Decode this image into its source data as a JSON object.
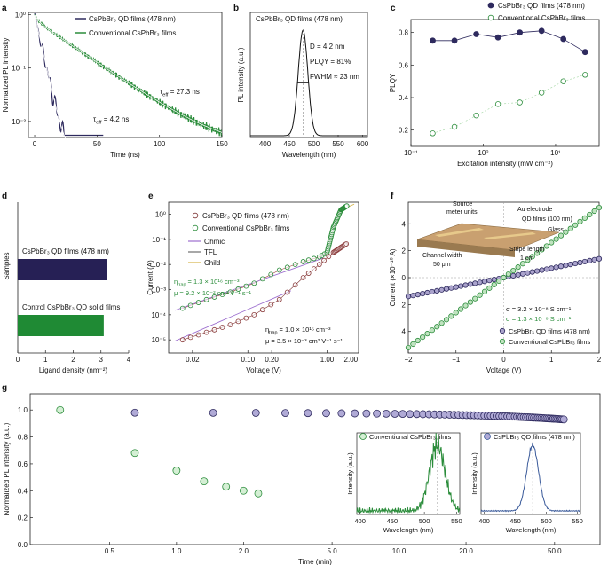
{
  "figure": {
    "panel_letters": [
      "a",
      "b",
      "c",
      "d",
      "e",
      "f",
      "g"
    ]
  },
  "colors": {
    "qd": "#2e2a5e",
    "qd_fill": "#262055",
    "qd_light": "#aaa3cc",
    "conv": "#2a8c3a",
    "conv_fill": "#1f8a34",
    "conv_light": "#bfe3bf",
    "fit": "#ffffff",
    "ohmic": "#9d6fcf",
    "tfl": "#6f6f6f",
    "child": "#d4b44a",
    "grid": "#dddddd"
  },
  "chart_data": [
    {
      "panel": "a",
      "type": "line",
      "title": "",
      "xlabel": "Time (ns)",
      "ylabel": "Normalized PL intensity",
      "xlim": [
        -5,
        150
      ],
      "xticks": [
        0,
        50,
        100,
        150
      ],
      "yscale": "log",
      "ylim": [
        0.005,
        1.1
      ],
      "yticks": [
        {
          "v": 1,
          "label": "10⁰"
        },
        {
          "v": 0.1,
          "label": "10⁻¹"
        },
        {
          "v": 0.01,
          "label": "10⁻²"
        }
      ],
      "legend": [
        "CsPbBr₃ QD films (478 nm)",
        "Conventional CsPbBr₃ films"
      ],
      "series": [
        {
          "name": "CsPbBr₃ QD films (478 nm)",
          "tau_eff_ns": 4.2,
          "x_end": 55
        },
        {
          "name": "Conventional CsPbBr₃ films",
          "tau_eff_ns": 27.3,
          "x_end": 150
        }
      ],
      "annotations": [
        {
          "text": "τ",
          "sub": "eff",
          "rest": " = 27.3 ns"
        },
        {
          "text": "τ",
          "sub": "eff",
          "rest": " = 4.2 ns"
        }
      ]
    },
    {
      "panel": "b",
      "type": "line",
      "title": "CsPbBr₃ QD films (478 nm)",
      "xlabel": "Wavelength (nm)",
      "ylabel": "PL intensity (a.u.)",
      "xlim": [
        370,
        610
      ],
      "xticks": [
        400,
        450,
        500,
        550,
        600
      ],
      "peak_nm": 478,
      "fwhm_nm": 23,
      "annotations": [
        "D = 4.2 nm",
        "PLQY = 81%",
        "FWHM ≈ 23 nm"
      ]
    },
    {
      "panel": "c",
      "type": "scatter",
      "title": "",
      "xlabel": "Excitation intensity (mW cm⁻²)",
      "ylabel": "PLQY",
      "xscale": "log",
      "xlim": [
        0.1,
        40
      ],
      "ylim": [
        0.1,
        0.88
      ],
      "xticks": [
        {
          "v": 0.1,
          "label": "10⁻¹"
        },
        {
          "v": 1,
          "label": "10⁰"
        },
        {
          "v": 10,
          "label": "10¹"
        }
      ],
      "yticks": [
        0.2,
        0.4,
        0.6,
        0.8
      ],
      "series": [
        {
          "name": "CsPbBr₃ QD films (478 nm)",
          "x": [
            0.2,
            0.4,
            0.8,
            1.6,
            3.2,
            6.4,
            12.8,
            25.6
          ],
          "y": [
            0.75,
            0.75,
            0.79,
            0.77,
            0.8,
            0.81,
            0.76,
            0.68
          ]
        },
        {
          "name": "Conventional CsPbBr₃ films",
          "x": [
            0.2,
            0.4,
            0.8,
            1.6,
            3.2,
            6.4,
            12.8,
            25.6
          ],
          "y": [
            0.18,
            0.22,
            0.29,
            0.36,
            0.37,
            0.43,
            0.5,
            0.54
          ]
        }
      ]
    },
    {
      "panel": "d",
      "type": "bar",
      "title": "",
      "xlabel": "Ligand density (nm⁻²)",
      "ylabel": "Samples",
      "xlim": [
        0,
        4
      ],
      "xticks": [
        0,
        1,
        2,
        3,
        4
      ],
      "categories": [
        "CsPbBr₃ QD films (478 nm)",
        "Control CsPbBr₃ QD solid films"
      ],
      "values": [
        3.2,
        3.1
      ]
    },
    {
      "panel": "e",
      "type": "scatter",
      "title": "",
      "xlabel": "Voltage (V)",
      "ylabel": "Current (A)",
      "xscale": "log",
      "yscale": "log",
      "xlim": [
        0.01,
        2.5
      ],
      "ylim": [
        3e-06,
        3
      ],
      "xticks": [
        {
          "v": 0.02,
          "label": "0.02"
        },
        {
          "v": 0.1,
          "label": "0.10"
        },
        {
          "v": 0.2,
          "label": "0.20"
        },
        {
          "v": 1,
          "label": "1.00"
        },
        {
          "v": 2,
          "label": "2.00"
        }
      ],
      "yticks": [
        {
          "v": 1,
          "label": "10⁰"
        },
        {
          "v": 0.1,
          "label": "10⁻¹"
        },
        {
          "v": 0.01,
          "label": "10⁻²"
        },
        {
          "v": 0.001,
          "label": "10⁻³"
        },
        {
          "v": 0.0001,
          "label": "10⁻⁴"
        },
        {
          "v": 1e-05,
          "label": "10⁻⁵"
        }
      ],
      "legend": [
        "CsPbBr₃ QD films (478 nm)",
        "Conventional CsPbBr₃ films",
        "Ohmic",
        "TFL",
        "Child"
      ],
      "series": [
        {
          "name": "CsPbBr₃ QD films (478 nm)",
          "x": [
            0.015,
            0.03,
            0.06,
            0.12,
            0.25,
            0.5,
            0.8,
            1.2,
            1.8
          ],
          "y": [
            1e-05,
            2e-05,
            4e-05,
            0.0001,
            0.0004,
            0.003,
            0.01,
            0.03,
            0.07
          ]
        },
        {
          "name": "Conventional CsPbBr₃ films",
          "x": [
            0.015,
            0.03,
            0.06,
            0.12,
            0.25,
            0.5,
            0.8,
            1.0,
            1.2,
            1.5,
            1.8
          ],
          "y": [
            0.00018,
            0.0004,
            0.0008,
            0.0018,
            0.006,
            0.013,
            0.02,
            0.03,
            0.3,
            1.5,
            2.2
          ]
        }
      ],
      "annotations": [
        {
          "t": "η",
          "sub": "trap",
          "rest": " = 1.3 × 10¹⁶ cm⁻³"
        },
        {
          "t": "μ = 9.2 × 10⁻² cm² V⁻¹ s⁻¹"
        },
        {
          "t": "η",
          "sub": "trap",
          "rest": " = 1.0 × 10¹⁵ cm⁻³"
        },
        {
          "t": "μ = 3.5 × 10⁻³ cm² V⁻¹ s⁻¹"
        }
      ]
    },
    {
      "panel": "f",
      "type": "scatter",
      "title": "",
      "xlabel": "Voltage (V)",
      "ylabel": "Current (×10⁻¹⁰ A)",
      "xlim": [
        -2,
        2
      ],
      "ylim": [
        -5.6,
        5.6
      ],
      "xticks": [
        -2,
        -1,
        0,
        1,
        2
      ],
      "yticks": [
        {
          "v": 4,
          "label": "4"
        },
        {
          "v": 2,
          "label": "2"
        },
        {
          "v": 0,
          "label": "0"
        },
        {
          "v": -2,
          "label": "2"
        },
        {
          "v": -4,
          "label": "4"
        }
      ],
      "series": [
        {
          "name": "CsPbBr₃ QD films (478 nm)",
          "x_range": [
            -2,
            2
          ],
          "slope": 0.7
        },
        {
          "name": "Conventional CsPbBr₃ films",
          "x_range": [
            -2,
            2
          ],
          "slope": 2.6
        }
      ],
      "annotations": [
        "σ = 3.2 × 10⁻⁸ S cm⁻¹",
        "σ = 1.3 × 10⁻⁸ S cm⁻¹"
      ],
      "inset_labels": [
        "Source",
        "meter units",
        "Au electrode",
        "QD films (100 nm)",
        "Glass",
        "Stripe length",
        "1 cm",
        "Channel width",
        "50 μm"
      ]
    },
    {
      "panel": "g",
      "type": "scatter",
      "title": "",
      "xlabel": "Time (min)",
      "ylabel": "Normalized PL intensity (a.u.)",
      "xscale": "log",
      "xlim": [
        0.22,
        80
      ],
      "ylim": [
        0,
        1.12
      ],
      "xticks": [
        0.5,
        1.0,
        2.0,
        5.0,
        10.0,
        20.0,
        50.0
      ],
      "yticks": [
        0,
        0.2,
        0.4,
        0.6,
        0.8,
        1.0
      ],
      "series": [
        {
          "name": "CsPbBr₃ QD films (478 nm)",
          "x_start": 0.65,
          "x_end": 55,
          "y_start": 0.98,
          "y_end": 0.93,
          "n": 68
        },
        {
          "name": "Conventional CsPbBr₃ films",
          "x": [
            0.3,
            0.65,
            1.0,
            1.33,
            1.67,
            2.0,
            2.33
          ],
          "y": [
            1.0,
            0.68,
            0.55,
            0.47,
            0.43,
            0.4,
            0.38
          ]
        }
      ],
      "insets": [
        {
          "title": "Conventional CsPbBr₃ films",
          "xlabel": "Wavelength (nm)",
          "ylabel": "Intensity (a.u.)",
          "xticks": [
            400,
            450,
            500,
            550
          ],
          "xlim": [
            395,
            555
          ],
          "peak_nm": 520
        },
        {
          "title": "CsPbBr₃ QD films (478 nm)",
          "xlabel": "Wavelength (nm)",
          "ylabel": "Intensity (a.u.)",
          "xticks": [
            400,
            450,
            500,
            550
          ],
          "xlim": [
            395,
            555
          ],
          "peak_nm": 478
        }
      ]
    }
  ]
}
